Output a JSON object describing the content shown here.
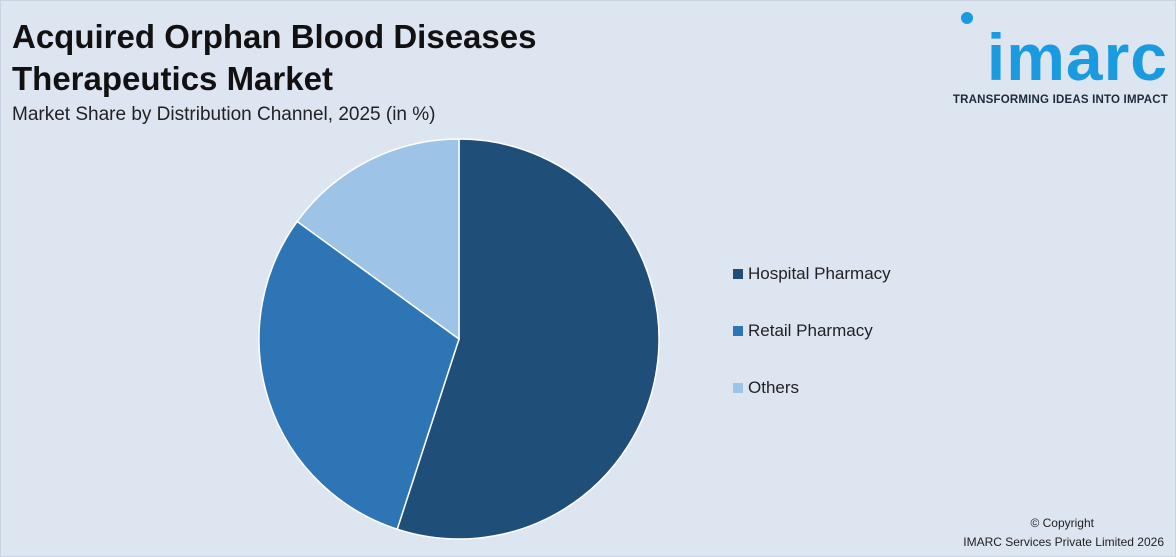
{
  "header": {
    "title_line1": "Acquired Orphan Blood Diseases",
    "title_line2": "Therapeutics Market",
    "subtitle": "Market Share by Distribution Channel, 2025 (in %)"
  },
  "logo": {
    "wordmark": "imarc",
    "tagline": "TRANSFORMING IDEAS INTO IMPACT",
    "color": "#1a9be0"
  },
  "chart_data": {
    "type": "pie",
    "title": "Market Share by Distribution Channel, 2025 (in %)",
    "slices": [
      {
        "label": "Hospital Pharmacy",
        "value": 55,
        "color": "#1f4e79"
      },
      {
        "label": "Retail Pharmacy",
        "value": 30,
        "color": "#2e75b6"
      },
      {
        "label": "Others",
        "value": 15,
        "color": "#9dc3e6"
      }
    ],
    "start_angle_deg": 0,
    "direction": "clockwise",
    "legend_position": "right"
  },
  "footer": {
    "copyright": "© Copyright",
    "company": "IMARC Services Private Limited 2026"
  }
}
